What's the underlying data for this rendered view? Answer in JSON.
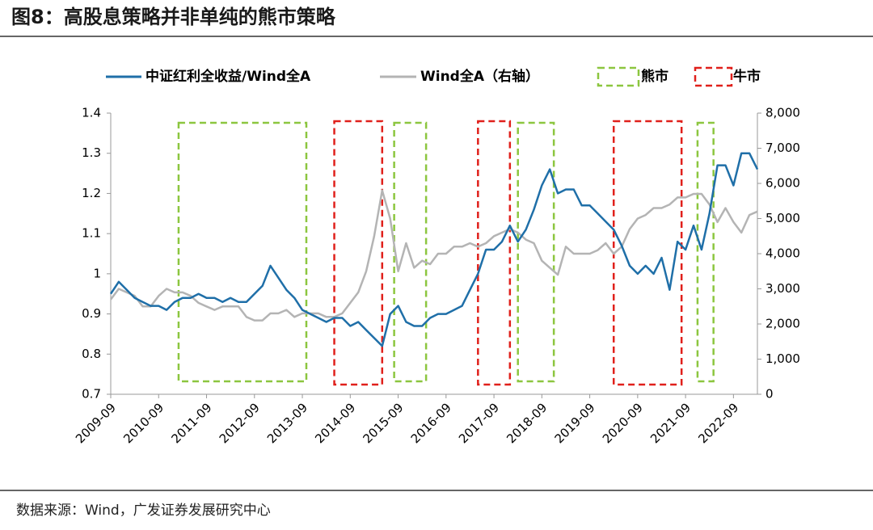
{
  "chart_data": {
    "type": "line",
    "title": "图8：高股息策略并非单纯的熊市策略",
    "source": "数据来源：Wind，广发证券发展研究中心",
    "x": [
      "2009-09",
      "2009-11",
      "2010-01",
      "2010-03",
      "2010-05",
      "2010-07",
      "2010-09",
      "2010-11",
      "2011-01",
      "2011-03",
      "2011-05",
      "2011-07",
      "2011-09",
      "2011-11",
      "2012-01",
      "2012-03",
      "2012-05",
      "2012-07",
      "2012-09",
      "2012-11",
      "2013-01",
      "2013-03",
      "2013-05",
      "2013-07",
      "2013-09",
      "2013-11",
      "2014-01",
      "2014-03",
      "2014-05",
      "2014-07",
      "2014-09",
      "2014-11",
      "2015-01",
      "2015-03",
      "2015-05",
      "2015-07",
      "2015-09",
      "2015-11",
      "2016-01",
      "2016-03",
      "2016-05",
      "2016-07",
      "2016-09",
      "2016-11",
      "2017-01",
      "2017-03",
      "2017-05",
      "2017-07",
      "2017-09",
      "2017-11",
      "2018-01",
      "2018-03",
      "2018-05",
      "2018-07",
      "2018-09",
      "2018-11",
      "2019-01",
      "2019-03",
      "2019-05",
      "2019-07",
      "2019-09",
      "2019-11",
      "2020-01",
      "2020-03",
      "2020-05",
      "2020-07",
      "2020-09",
      "2020-11",
      "2021-01",
      "2021-03",
      "2021-05",
      "2021-07",
      "2021-09",
      "2021-11",
      "2022-01",
      "2022-03",
      "2022-05",
      "2022-07",
      "2022-09",
      "2022-11",
      "2023-01",
      "2023-03"
    ],
    "xlim": [
      "2009-09",
      "2023-03"
    ],
    "xticks": [
      "2009-09",
      "2010-09",
      "2011-09",
      "2012-09",
      "2013-09",
      "2014-09",
      "2015-09",
      "2016-09",
      "2017-09",
      "2018-09",
      "2019-09",
      "2020-09",
      "2021-09",
      "2022-09"
    ],
    "series": [
      {
        "name": "中证红利全收益/Wind全A",
        "color": "#1f6fa8",
        "axis": "y",
        "values": [
          0.95,
          0.98,
          0.96,
          0.94,
          0.93,
          0.92,
          0.92,
          0.91,
          0.93,
          0.94,
          0.94,
          0.95,
          0.94,
          0.94,
          0.93,
          0.94,
          0.93,
          0.93,
          0.95,
          0.97,
          1.02,
          0.99,
          0.96,
          0.94,
          0.91,
          0.9,
          0.89,
          0.88,
          0.89,
          0.89,
          0.87,
          0.88,
          0.86,
          0.84,
          0.82,
          0.9,
          0.92,
          0.88,
          0.87,
          0.87,
          0.89,
          0.9,
          0.9,
          0.91,
          0.92,
          0.96,
          1.0,
          1.06,
          1.06,
          1.08,
          1.12,
          1.08,
          1.11,
          1.16,
          1.22,
          1.26,
          1.2,
          1.21,
          1.21,
          1.17,
          1.17,
          1.15,
          1.13,
          1.11,
          1.07,
          1.02,
          1.0,
          1.02,
          1.0,
          1.04,
          0.96,
          1.08,
          1.06,
          1.12,
          1.06,
          1.15,
          1.27,
          1.27,
          1.22,
          1.3,
          1.3,
          1.26
        ]
      },
      {
        "name": "Wind全A（右轴）",
        "color": "#b4b4b4",
        "axis": "y2",
        "values": [
          2700,
          3000,
          2900,
          2800,
          2500,
          2500,
          2800,
          3000,
          2900,
          2900,
          2800,
          2600,
          2500,
          2400,
          2500,
          2500,
          2500,
          2200,
          2100,
          2100,
          2300,
          2300,
          2400,
          2200,
          2300,
          2300,
          2300,
          2200,
          2200,
          2300,
          2600,
          2900,
          3500,
          4500,
          5800,
          5000,
          3500,
          4300,
          3600,
          3800,
          3700,
          4000,
          4000,
          4200,
          4200,
          4300,
          4200,
          4300,
          4500,
          4600,
          4700,
          4600,
          4400,
          4300,
          3800,
          3600,
          3400,
          4200,
          4000,
          4000,
          4000,
          4100,
          4300,
          4000,
          4200,
          4700,
          5000,
          5100,
          5300,
          5300,
          5400,
          5600,
          5600,
          5700,
          5700,
          5400,
          4900,
          5300,
          4900,
          4600,
          5100,
          5200
        ]
      }
    ],
    "regions": [
      {
        "name": "熊市",
        "color": "#8cc63f",
        "periods": [
          [
            "2011-02",
            "2013-10"
          ],
          [
            "2015-08",
            "2016-04"
          ],
          [
            "2018-03",
            "2018-12"
          ],
          [
            "2021-12",
            "2022-04"
          ]
        ]
      },
      {
        "name": "牛市",
        "color": "#e0201b",
        "periods": [
          [
            "2014-05",
            "2015-05"
          ],
          [
            "2017-05",
            "2018-01"
          ],
          [
            "2020-03",
            "2021-08"
          ]
        ]
      }
    ],
    "ylim": [
      0.7,
      1.4
    ],
    "yticks": [
      0.7,
      0.8,
      0.9,
      1,
      1.1,
      1.2,
      1.3,
      1.4
    ],
    "y2lim": [
      0,
      8000
    ],
    "y2ticks": [
      0,
      {
        "value": 1000,
        "label": "1,000"
      },
      {
        "value": 2000,
        "label": "2,000"
      },
      {
        "value": 3000,
        "label": "3,000"
      },
      {
        "value": 4000,
        "label": "4,000"
      },
      {
        "value": 5000,
        "label": "5,000"
      },
      {
        "value": 6000,
        "label": "6,000"
      },
      {
        "value": 7000,
        "label": "7,000"
      },
      {
        "value": 8000,
        "label": "8,000"
      }
    ]
  }
}
